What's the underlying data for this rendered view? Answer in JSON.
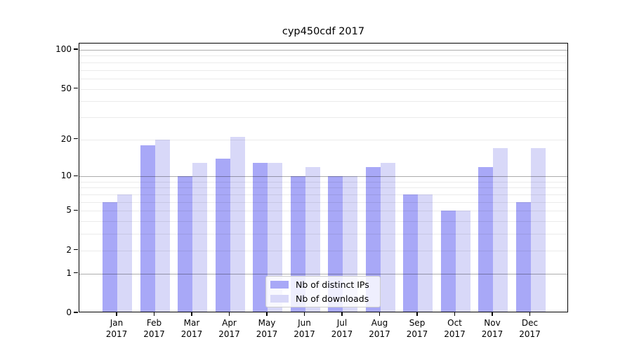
{
  "figure": {
    "background": "#ffffff",
    "spine_color": "#000000",
    "major_grid_color": "rgba(0,0,0,0.32)",
    "minor_grid_color": "rgba(0,0,0,0.08)",
    "tick_color": "#000000"
  },
  "chart_data": {
    "type": "bar",
    "title": "cyp450cdf 2017",
    "categories": [
      "Jan",
      "Feb",
      "Mar",
      "Apr",
      "May",
      "Jun",
      "Jul",
      "Aug",
      "Sep",
      "Oct",
      "Nov",
      "Dec"
    ],
    "category_year": "2017",
    "series": [
      {
        "name": "Nb of distinct IPs",
        "color": "#a8a8f7",
        "values": [
          6,
          18,
          10,
          14,
          13,
          10,
          10,
          12,
          7,
          5,
          12,
          6
        ]
      },
      {
        "name": "Nb of downloads",
        "color": "#d8d8f8",
        "values": [
          7,
          20,
          13,
          21,
          13,
          12,
          10,
          13,
          7,
          5,
          17,
          17
        ]
      }
    ],
    "yscale": "log1p",
    "ylim": [
      0,
      100
    ],
    "yticks": [
      100,
      50,
      20,
      10,
      5,
      2,
      1,
      0
    ],
    "grid_major_at": [
      1,
      10,
      100
    ],
    "grid_minor_at": [
      2,
      3,
      4,
      5,
      6,
      7,
      8,
      9,
      20,
      30,
      40,
      50,
      60,
      70,
      80,
      90
    ],
    "legend_position": "lower center",
    "grid": true
  }
}
